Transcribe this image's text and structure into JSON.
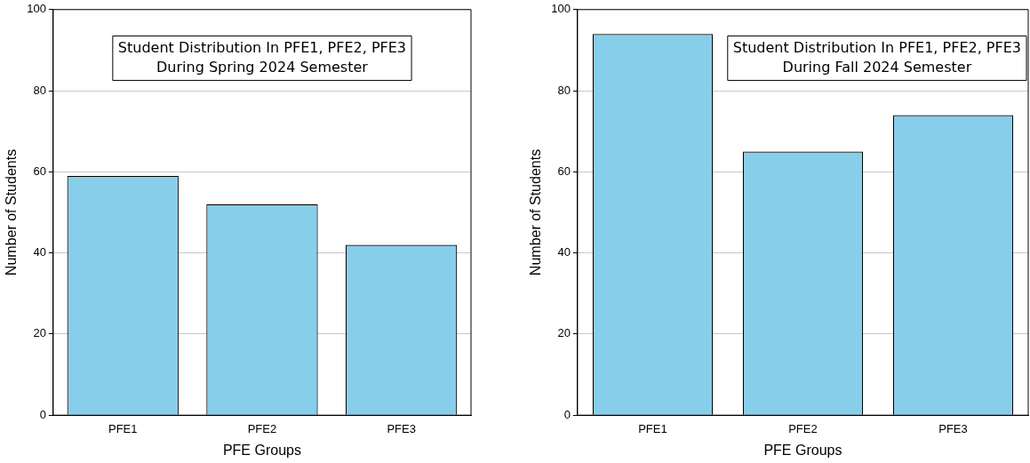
{
  "chart_data": [
    {
      "type": "bar",
      "title": "Student Distribution In PFE1, PFE2, PFE3\nDuring Spring 2024 Semester",
      "xlabel": "PFE Groups",
      "ylabel": "Number of Students",
      "categories": [
        "PFE1",
        "PFE2",
        "PFE3"
      ],
      "values": [
        59,
        52,
        42
      ],
      "color": "#87ceeb",
      "ylim": [
        0,
        100
      ],
      "yticks": [
        0,
        20,
        40,
        60,
        80,
        100
      ],
      "grid": "y",
      "legend": false
    },
    {
      "type": "bar",
      "title": "Student Distribution In PFE1, PFE2, PFE3\nDuring Fall 2024 Semester",
      "xlabel": "PFE Groups",
      "ylabel": "Number of Students",
      "categories": [
        "PFE1",
        "PFE2",
        "PFE3"
      ],
      "values": [
        94,
        65,
        74
      ],
      "color": "#87ceeb",
      "ylim": [
        0,
        100
      ],
      "yticks": [
        0,
        20,
        40,
        60,
        80,
        100
      ],
      "grid": "y",
      "legend": false
    }
  ]
}
